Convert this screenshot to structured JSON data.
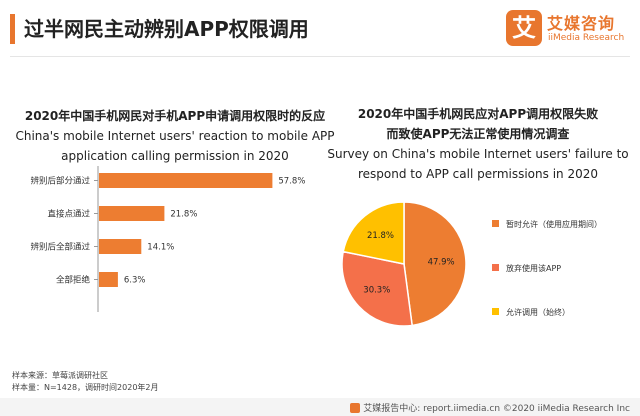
{
  "page": {
    "title": "过半网民主动辨别APP权限调用",
    "accent_color": "#e8762e"
  },
  "logo": {
    "mark": "艾",
    "name_cn": "艾媒咨询",
    "name_en": "iiMedia Research",
    "icon": "iimedia-logo-icon"
  },
  "source": {
    "line1": "样本来源：草莓派调研社区",
    "line2": "样本量：N=1428，调研时间2020年2月"
  },
  "footer": {
    "text": "艾媒报告中心: report.iimedia.cn  ©2020  iiMedia Research  Inc",
    "icon": "report-center-icon"
  },
  "chart_data": [
    {
      "type": "bar",
      "orientation": "horizontal",
      "title": "2020年中国手机网民对手机APP申请调用权限时的反应",
      "subtitle": "China's mobile Internet users' reaction to mobile APP application calling permission in 2020",
      "subtitle_lines": [
        "China's mobile Internet users' reaction to mobile APP",
        "application calling permission in 2020"
      ],
      "categories": [
        "辨别后部分通过",
        "直接点通过",
        "辨别后全部通过",
        "全部拒绝"
      ],
      "values": [
        57.8,
        21.8,
        14.1,
        6.3
      ],
      "value_labels": [
        "57.8%",
        "21.8%",
        "14.1%",
        "6.3%"
      ],
      "unit": "%",
      "xlim": [
        0,
        60
      ],
      "color": "#ed7d31",
      "grid": false,
      "legend": "none"
    },
    {
      "type": "pie",
      "title": "2020年中国手机网民应对APP调用权限失败而致使APP无法正常使用情况调查",
      "title_lines": [
        "2020年中国手机网民应对APP调用权限失败",
        "而致使APP无法正常使用情况调查"
      ],
      "subtitle": "Survey on China's mobile Internet users' failure to respond to APP call permissions in 2020",
      "subtitle_lines": [
        "Survey on China's mobile Internet users' failure to",
        "respond to APP call permissions in 2020"
      ],
      "slices": [
        {
          "label": "暂时允许（使用应用期间）",
          "value": 47.9,
          "value_label": "47.9%",
          "color": "#ed7d31"
        },
        {
          "label": "放弃使用该APP",
          "value": 30.3,
          "value_label": "30.3%",
          "color": "#f4704a"
        },
        {
          "label": "允许调用（始终）",
          "value": 21.8,
          "value_label": "21.8%",
          "color": "#ffc000"
        }
      ],
      "legend": "right"
    }
  ]
}
